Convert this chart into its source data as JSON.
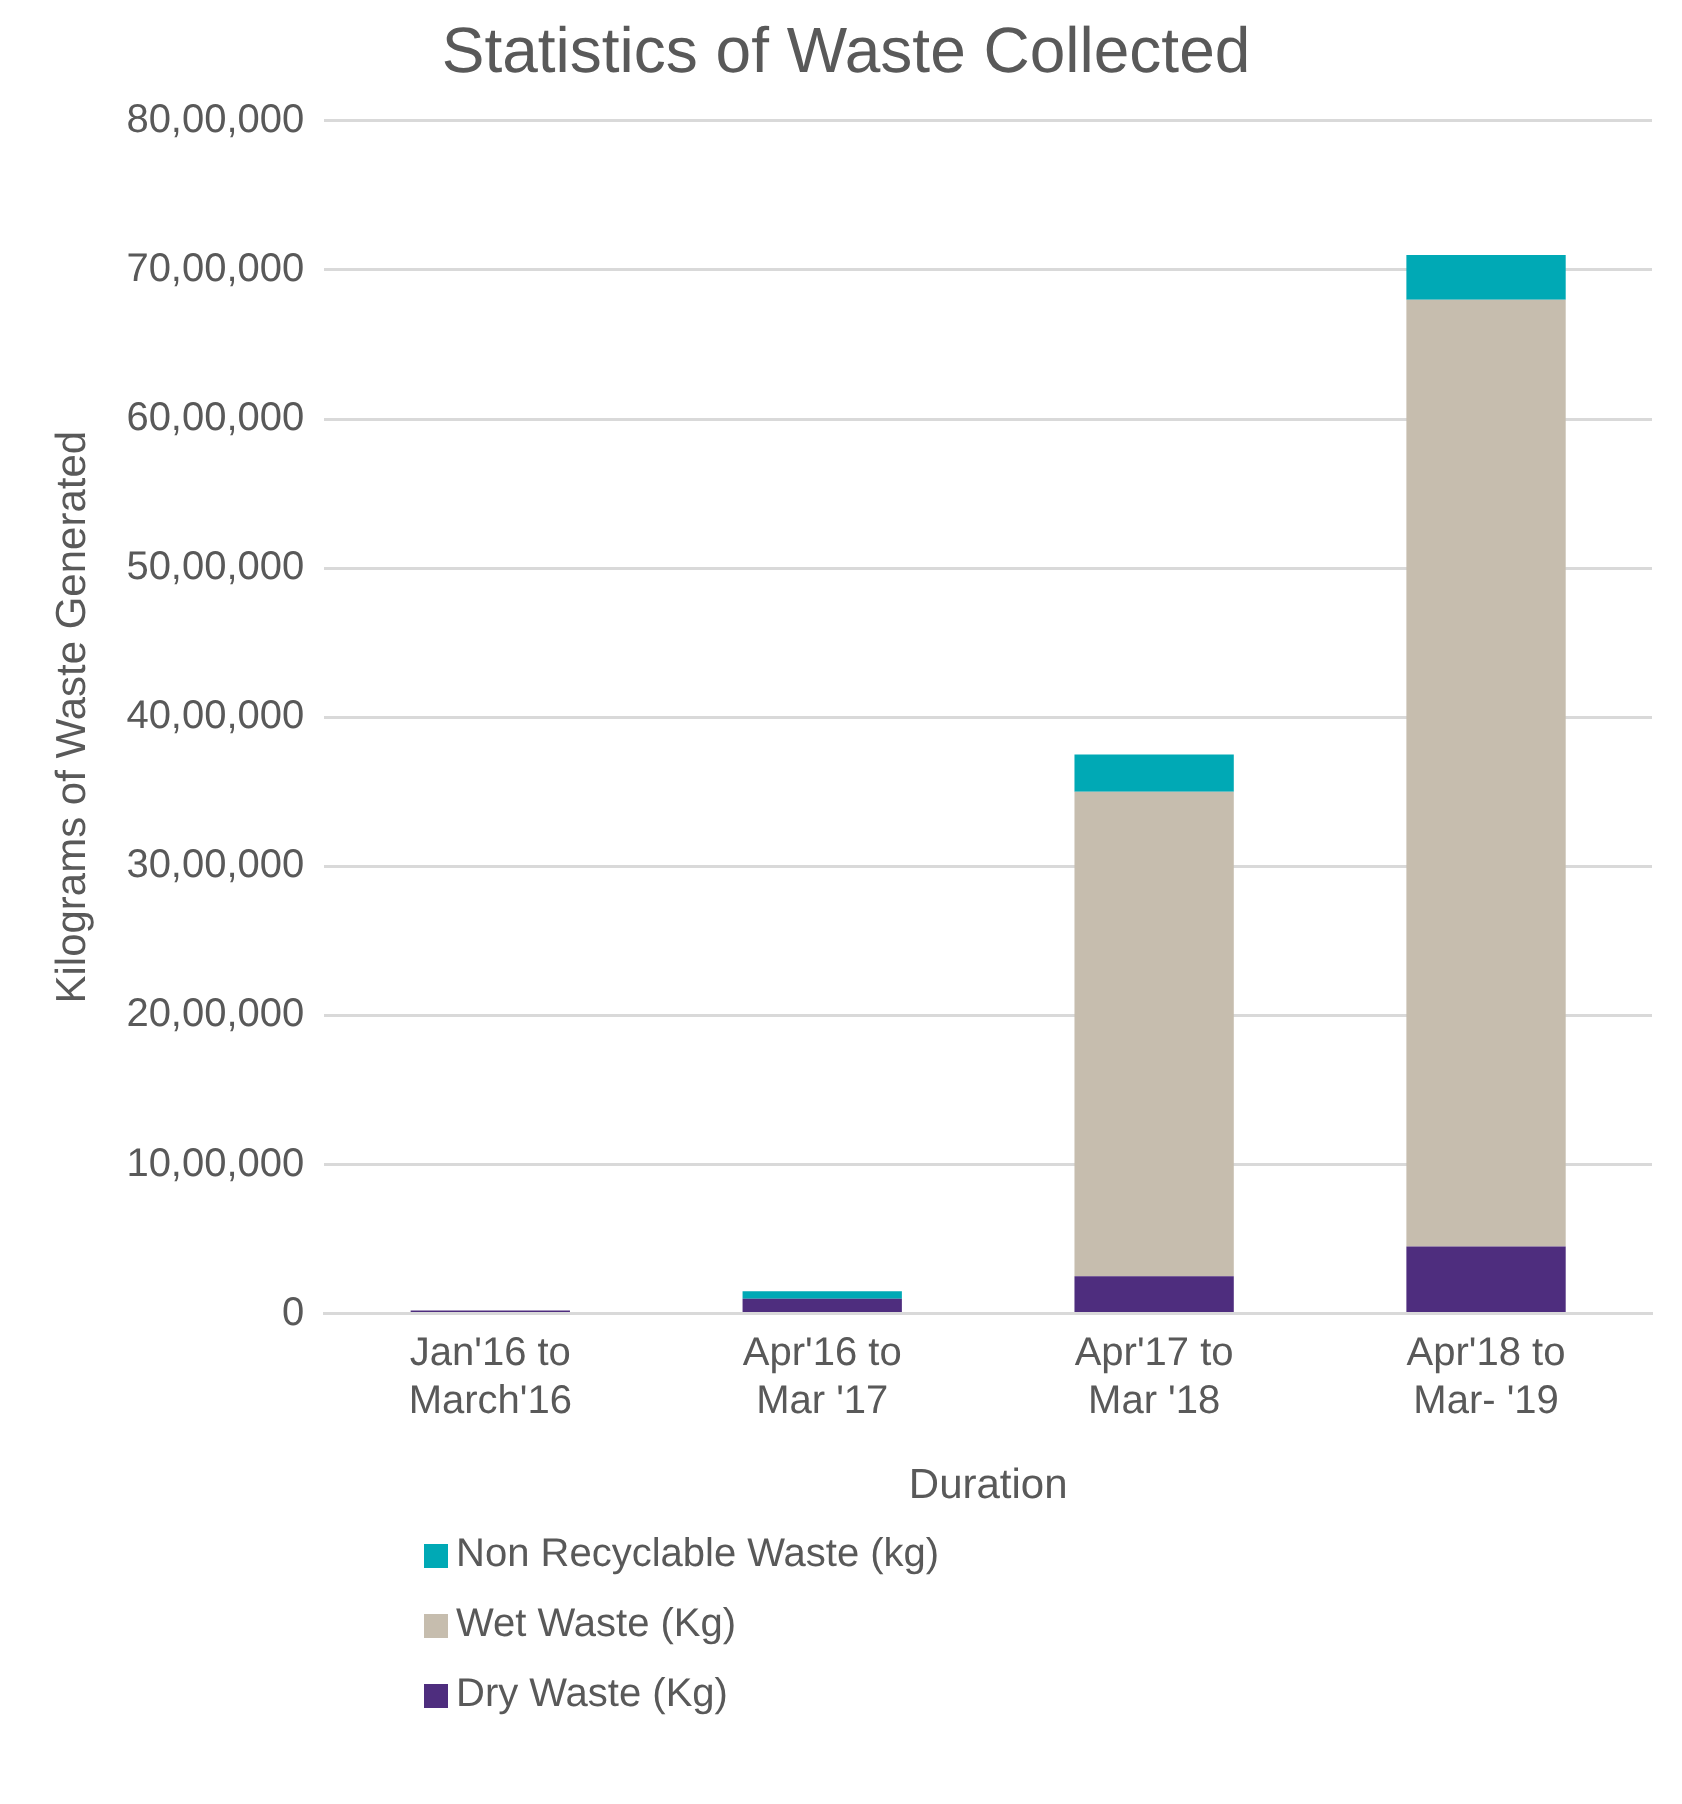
{
  "chart_data": {
    "type": "bar",
    "title": "Statistics of Waste Collected",
    "xlabel": "Duration",
    "ylabel": "Kilograms of Waste Generated",
    "categories": [
      "Jan'16 to March'16",
      "Apr'16 to Mar '17",
      "Apr'17 to Mar '18",
      "Apr'18 to Mar- '19"
    ],
    "stacked": true,
    "series": [
      {
        "name": "Dry Waste (Kg)",
        "color": "#4e2d7e",
        "values": [
          20000,
          100000,
          250000,
          450000
        ]
      },
      {
        "name": "Wet Waste (Kg)",
        "color": "#c6bdae",
        "values": [
          0,
          0,
          3250000,
          6350000
        ]
      },
      {
        "name": "Non Recyclable Waste (kg)",
        "color": "#00a9b5",
        "values": [
          0,
          50000,
          250000,
          300000
        ]
      }
    ],
    "ylim": [
      0,
      8000000
    ],
    "yticks": [
      {
        "value": 0,
        "label": "0"
      },
      {
        "value": 1000000,
        "label": "10,00,000"
      },
      {
        "value": 2000000,
        "label": "20,00,000"
      },
      {
        "value": 3000000,
        "label": "30,00,000"
      },
      {
        "value": 4000000,
        "label": "40,00,000"
      },
      {
        "value": 5000000,
        "label": "50,00,000"
      },
      {
        "value": 6000000,
        "label": "60,00,000"
      },
      {
        "value": 7000000,
        "label": "70,00,000"
      },
      {
        "value": 8000000,
        "label": "80,00,000"
      }
    ],
    "grid": "y",
    "legend": "bottom"
  }
}
